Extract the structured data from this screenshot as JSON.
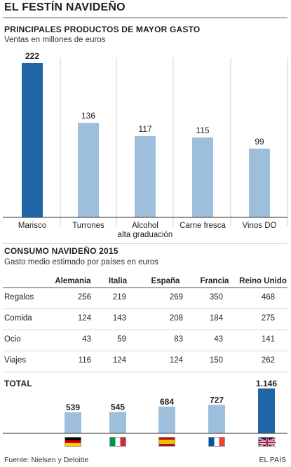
{
  "title": "EL FESTÍN NAVIDEÑO",
  "section1": {
    "title": "PRINCIPALES PRODUCTOS DE MAYOR GASTO",
    "subtitle": "Ventas en millones de euros"
  },
  "section2": {
    "title": "CONSUMO NAVIDEÑO 2015",
    "subtitle": "Gasto medio estimado por países en euros",
    "total_label": "TOTAL"
  },
  "colors": {
    "highlight": "#1f66a8",
    "light": "#9dbfdc",
    "axis": "#555555"
  },
  "chart_data": [
    {
      "type": "bar",
      "title": "PRINCIPALES PRODUCTOS DE MAYOR GASTO",
      "subtitle": "Ventas en millones de euros",
      "categories": [
        "Marisco",
        "Turrones",
        "Alcohol alta graduación",
        "Carne fresca",
        "Vinos DO"
      ],
      "category_lines": [
        [
          "Marisco"
        ],
        [
          "Turrones"
        ],
        [
          "Alcohol",
          "alta graduación"
        ],
        [
          "Carne fresca"
        ],
        [
          "Vinos DO"
        ]
      ],
      "values": [
        222,
        136,
        117,
        115,
        99
      ],
      "highlight_index": 0,
      "ylim": [
        0,
        222
      ]
    },
    {
      "type": "table",
      "title": "CONSUMO NAVIDEÑO 2015",
      "subtitle": "Gasto medio estimado por países en euros",
      "columns": [
        "Alemania",
        "Italia",
        "España",
        "Francia",
        "Reino Unido"
      ],
      "rows": [
        {
          "label": "Regalos",
          "values": [
            256,
            219,
            269,
            350,
            468
          ]
        },
        {
          "label": "Comida",
          "values": [
            124,
            143,
            208,
            184,
            275
          ]
        },
        {
          "label": "Ocio",
          "values": [
            43,
            59,
            83,
            43,
            141
          ]
        },
        {
          "label": "Viajes",
          "values": [
            116,
            124,
            124,
            150,
            262
          ]
        }
      ]
    },
    {
      "type": "bar",
      "title": "TOTAL",
      "categories": [
        "Alemania",
        "Italia",
        "España",
        "Francia",
        "Reino Unido"
      ],
      "values": [
        539,
        545,
        684,
        727,
        1146
      ],
      "value_labels": [
        "539",
        "545",
        "684",
        "727",
        "1.146"
      ],
      "highlight_index": 4,
      "ylim": [
        0,
        1146
      ]
    }
  ],
  "flags": [
    "germany-flag-icon",
    "italy-flag-icon",
    "spain-flag-icon",
    "france-flag-icon",
    "uk-flag-icon"
  ],
  "footer": {
    "source": "Fuente: Nielsen y Deloitte",
    "brand": "EL PAÍS"
  }
}
